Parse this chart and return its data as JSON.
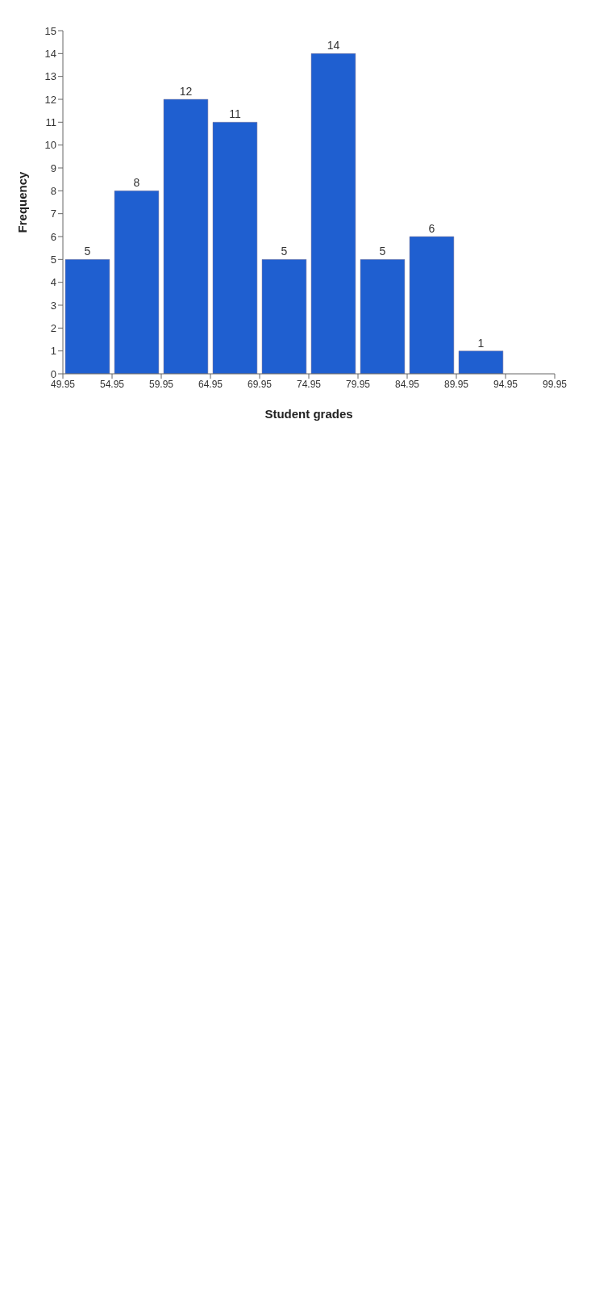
{
  "chart_data": {
    "type": "histogram",
    "xlabel": "Student grades",
    "ylabel": "Frequency",
    "bins": [
      49.95,
      54.95,
      59.95,
      64.95,
      69.95,
      74.95,
      79.95,
      84.95,
      89.95,
      94.95
    ],
    "values": [
      5,
      8,
      12,
      11,
      5,
      14,
      5,
      6,
      1
    ],
    "color": "#1f5fd0",
    "xlim": [
      49.95,
      99.95
    ],
    "xticks": [
      49.95,
      54.95,
      59.95,
      64.95,
      69.95,
      74.95,
      79.95,
      84.95,
      89.95,
      94.95,
      99.95
    ],
    "ylim": [
      0,
      15
    ],
    "yticks": [
      0,
      1,
      2,
      3,
      4,
      5,
      6,
      7,
      8,
      9,
      10,
      11,
      12,
      13,
      14,
      15
    ],
    "data_labels": true
  }
}
